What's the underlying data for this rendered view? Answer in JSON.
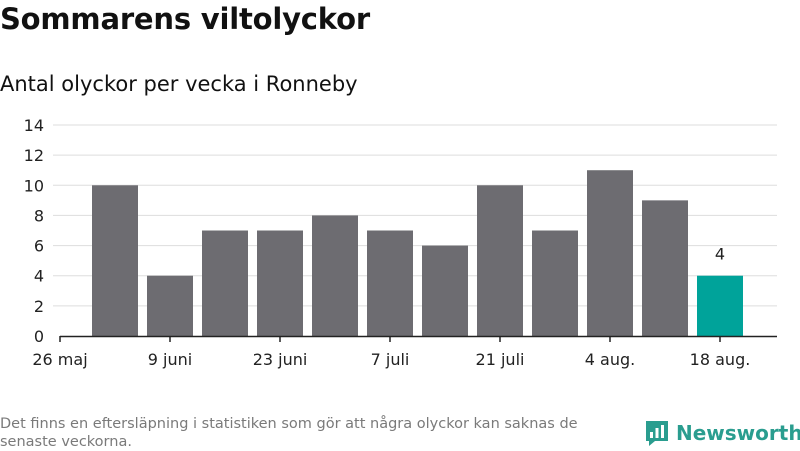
{
  "title": "Sommarens viltolyckor",
  "subtitle": "Antal olyckor per vecka i Ronneby",
  "footnote": "Det finns en eftersläpning i statistiken som gör att några olyckor kan saknas de senaste veckorna.",
  "brand": {
    "name": "Newsworthy",
    "icon": "bar-chart-logo-icon"
  },
  "colors": {
    "bar": "#6d6c71",
    "highlight": "#00a39a",
    "grid": "#dddddd",
    "axis": "#222222",
    "brand": "#2a9d8f"
  },
  "chart_data": {
    "type": "bar",
    "title": "Sommarens viltolyckor",
    "subtitle": "Antal olyckor per vecka i Ronneby",
    "xlabel": "",
    "ylabel": "",
    "ylim": [
      0,
      14
    ],
    "yticks": [
      0,
      2,
      4,
      6,
      8,
      10,
      12,
      14
    ],
    "grid": true,
    "x_tick_labels": [
      "26 maj",
      "9 juni",
      "23 juni",
      "7 juli",
      "21 juli",
      "4 aug.",
      "18 aug."
    ],
    "values": [
      10,
      4,
      7,
      7,
      8,
      7,
      6,
      10,
      7,
      11,
      9,
      4
    ],
    "highlight_index": 11,
    "highlight_label": "4"
  }
}
